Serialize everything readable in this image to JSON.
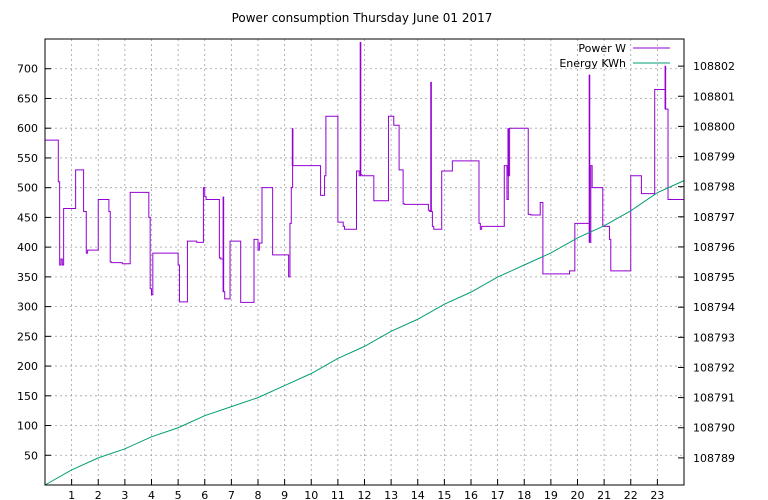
{
  "chart_data": {
    "type": "line",
    "title": "Power consumption Thursday June 01 2017",
    "xlabel": "",
    "ylabel": "",
    "y2label": "",
    "xlim": [
      0,
      24
    ],
    "ylim": [
      0,
      750
    ],
    "y2lim": [
      108788.1,
      108802.9
    ],
    "x_ticks": [
      1,
      2,
      3,
      4,
      5,
      6,
      7,
      8,
      9,
      10,
      11,
      12,
      13,
      14,
      15,
      16,
      17,
      18,
      19,
      20,
      21,
      22,
      23
    ],
    "y_ticks": [
      50,
      100,
      150,
      200,
      250,
      300,
      350,
      400,
      450,
      500,
      550,
      600,
      650,
      700
    ],
    "y2_ticks": [
      108789,
      108790,
      108791,
      108792,
      108793,
      108794,
      108795,
      108796,
      108797,
      108798,
      108799,
      108800,
      108801,
      108802
    ],
    "grid": true,
    "legend_position": "top-right",
    "series": [
      {
        "name": "Power W",
        "axis": "left",
        "color": "#9400d3",
        "step": true,
        "x": [
          0,
          0.5,
          0.55,
          0.6,
          0.65,
          0.7,
          1.15,
          1.45,
          1.55,
          1.6,
          2.0,
          2.4,
          2.45,
          2.5,
          2.9,
          3.2,
          3.9,
          3.95,
          4.0,
          4.05,
          5.0,
          5.05,
          5.35,
          5.7,
          5.95,
          6.0,
          6.05,
          6.55,
          6.6,
          6.7,
          6.75,
          6.95,
          7.35,
          7.85,
          8.0,
          8.05,
          8.15,
          8.55,
          9.15,
          9.2,
          9.25,
          9.3,
          10.35,
          10.5,
          10.55,
          11.0,
          11.2,
          11.25,
          11.7,
          11.8,
          11.85,
          11.9,
          12.35,
          12.9,
          13.1,
          13.3,
          13.45,
          13.5,
          14.4,
          14.45,
          14.55,
          14.6,
          14.9,
          15.3,
          16.3,
          16.35,
          16.4,
          17.25,
          17.35,
          17.4,
          17.45,
          18.15,
          18.2,
          18.25,
          18.6,
          18.7,
          19.7,
          19.9,
          20.45,
          20.5,
          20.55,
          20.95,
          21.2,
          21.25,
          22.0,
          22.4,
          22.9,
          23.3,
          23.35,
          23.4,
          23.75,
          24.0
        ],
        "values": [
          580,
          510,
          370,
          380,
          370,
          465,
          530,
          460,
          390,
          395,
          480,
          460,
          375,
          374,
          372,
          492,
          450,
          330,
          320,
          390,
          370,
          308,
          410,
          408,
          500,
          485,
          480,
          382,
          380,
          325,
          313,
          410,
          307,
          413,
          395,
          407,
          500,
          387,
          350,
          440,
          500,
          537,
          487,
          520,
          620,
          442,
          435,
          430,
          528,
          520,
          522,
          520,
          478,
          620,
          605,
          530,
          473,
          472,
          462,
          460,
          435,
          430,
          528,
          545,
          440,
          430,
          435,
          537,
          480,
          520,
          600,
          455,
          455,
          454,
          475,
          355,
          360,
          440,
          408,
          537,
          500,
          435,
          413,
          360,
          520,
          490,
          665,
          632,
          632,
          480,
          480,
          530
        ],
        "spikes": [
          {
            "x": 11.85,
            "value": 745
          },
          {
            "x": 14.5,
            "value": 678
          },
          {
            "x": 20.45,
            "value": 690
          },
          {
            "x": 23.3,
            "value": 705
          },
          {
            "x": 17.4,
            "value": 600
          },
          {
            "x": 9.3,
            "value": 600
          },
          {
            "x": 6.7,
            "value": 485
          }
        ]
      },
      {
        "name": "Energy KWh",
        "axis": "right",
        "color": "#009e73",
        "x": [
          0,
          1,
          2,
          3,
          4,
          5,
          6,
          7,
          8,
          9,
          10,
          11,
          12,
          13,
          14,
          15,
          16,
          17,
          18,
          19,
          20,
          21,
          22,
          23,
          24
        ],
        "values": [
          108788.1,
          108788.6,
          108789.0,
          108789.3,
          108789.7,
          108790.0,
          108790.4,
          108790.7,
          108791.0,
          108791.4,
          108791.8,
          108792.3,
          108792.7,
          108793.2,
          108793.6,
          108794.1,
          108794.5,
          108795.0,
          108795.4,
          108795.8,
          108796.3,
          108796.7,
          108797.2,
          108797.8,
          108798.2
        ]
      }
    ]
  }
}
